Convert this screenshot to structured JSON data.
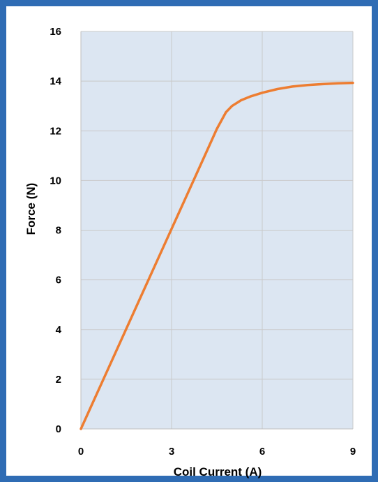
{
  "chart_data": {
    "type": "line",
    "title": "",
    "xlabel": "Coil Current (A)",
    "ylabel": "Force (N)",
    "xlim": [
      0,
      9
    ],
    "ylim": [
      0,
      16
    ],
    "xticks": [
      0,
      3,
      6,
      9
    ],
    "yticks": [
      0,
      2,
      4,
      6,
      8,
      10,
      12,
      14,
      16
    ],
    "grid": true,
    "legend": "none",
    "series": [
      {
        "x": [
          0,
          1,
          2,
          3,
          4,
          4.5,
          4.8,
          5.0,
          5.3,
          5.6,
          6.0,
          6.5,
          7.0,
          7.5,
          8.0,
          8.5,
          9.0
        ],
        "y": [
          0,
          2.68,
          5.37,
          8.05,
          10.73,
          12.08,
          12.75,
          13.0,
          13.23,
          13.38,
          13.53,
          13.68,
          13.78,
          13.84,
          13.88,
          13.91,
          13.93
        ]
      }
    ],
    "colors": {
      "line": "#ed7d31",
      "plot_background": "#dce6f2",
      "gridline": "#c9c9c9",
      "frame_border": "#2f6cb4"
    }
  }
}
